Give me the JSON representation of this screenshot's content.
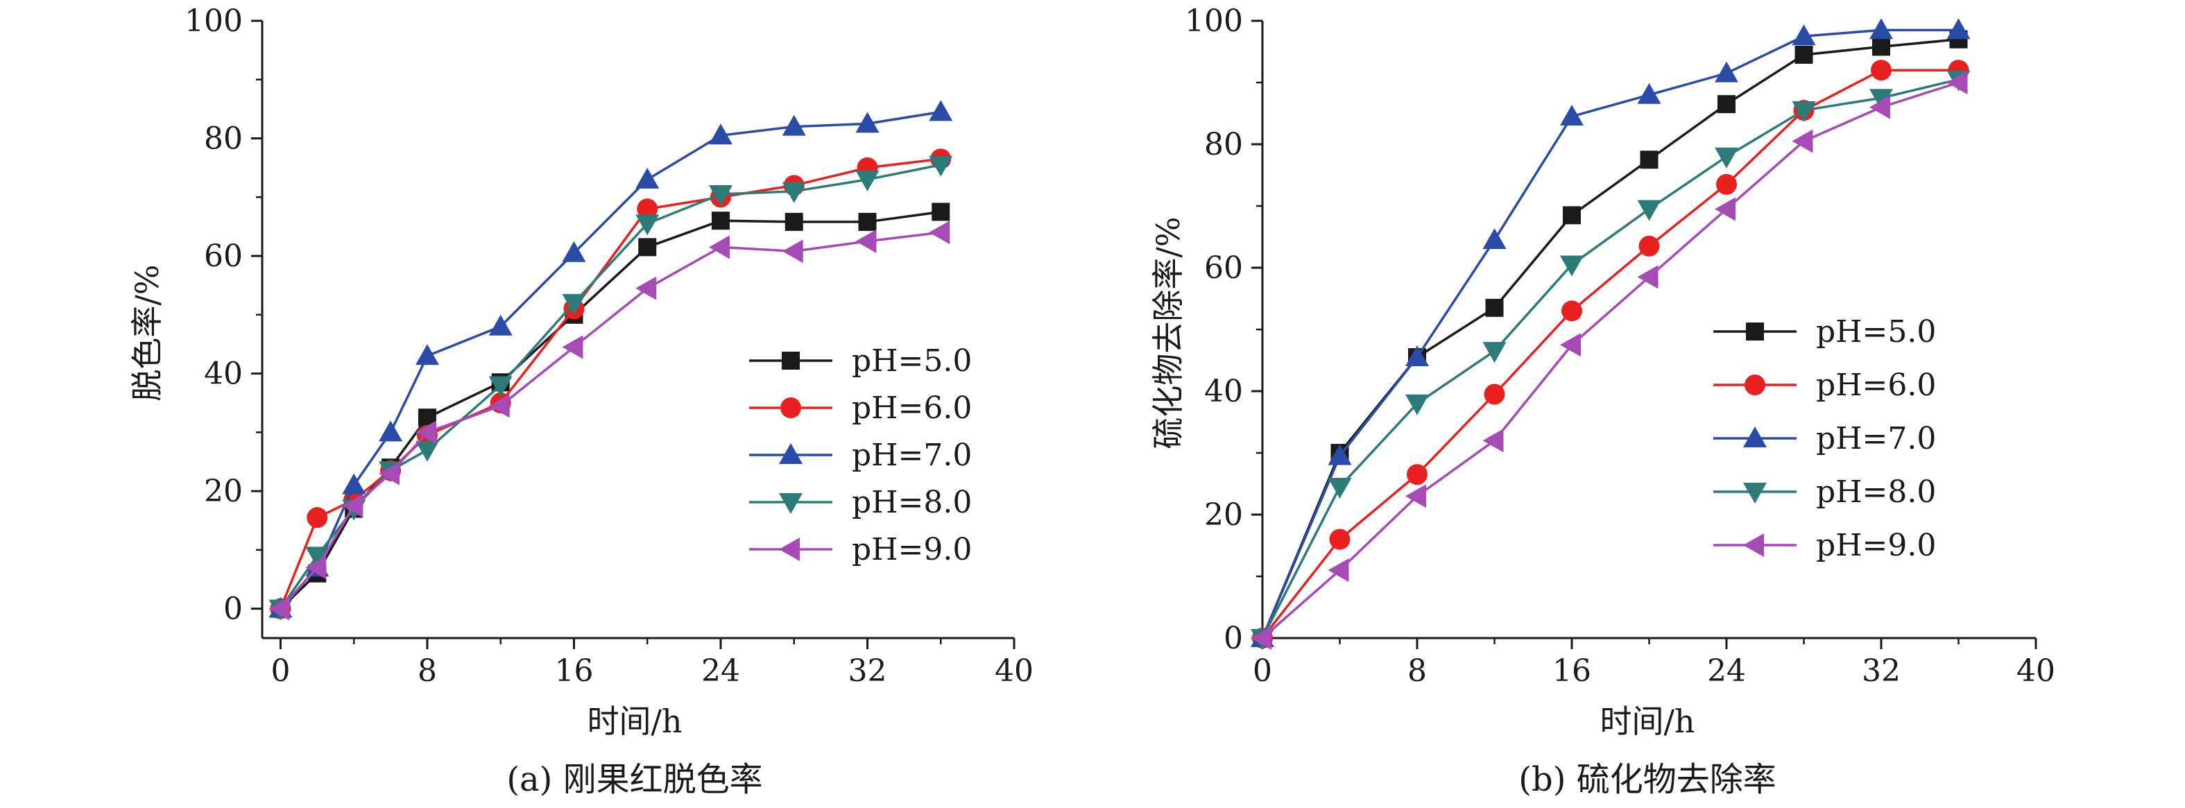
{
  "chart_data": [
    {
      "type": "line",
      "panel": "a",
      "caption": "(a) 刚果红脱色率",
      "xlabel": "时间/h",
      "ylabel": "脱色率/%",
      "xlim": [
        -1,
        40
      ],
      "ylim": [
        -5,
        100
      ],
      "xticks": [
        0,
        8,
        16,
        24,
        32,
        40
      ],
      "yticks": [
        0,
        20,
        40,
        60,
        80,
        100
      ],
      "grid": false,
      "legend_position": "center-right",
      "series": [
        {
          "name": "pH=5.0",
          "color": "#1a1a1a",
          "marker": "square",
          "x": [
            0,
            2,
            4,
            6,
            8,
            12,
            16,
            20,
            24,
            28,
            32,
            36
          ],
          "y": [
            0,
            6,
            17,
            24,
            32.5,
            38.5,
            50,
            61.5,
            66,
            65.8,
            65.8,
            67.5
          ]
        },
        {
          "name": "pH=6.0",
          "color": "#e8201f",
          "marker": "circle",
          "x": [
            0,
            2,
            4,
            6,
            8,
            12,
            16,
            20,
            24,
            28,
            32,
            36
          ],
          "y": [
            0,
            15.5,
            18.5,
            23.5,
            29.5,
            35,
            51,
            68,
            70,
            72,
            75,
            76.5
          ]
        },
        {
          "name": "pH=7.0",
          "color": "#2a4ca6",
          "marker": "triangle-up",
          "x": [
            0,
            2,
            4,
            6,
            8,
            12,
            16,
            20,
            24,
            28,
            32,
            36
          ],
          "y": [
            0,
            7,
            21,
            30,
            43,
            48,
            60.5,
            73,
            80.5,
            82,
            82.5,
            84.5
          ]
        },
        {
          "name": "pH=8.0",
          "color": "#2d7b78",
          "marker": "triangle-down",
          "x": [
            0,
            2,
            4,
            6,
            8,
            12,
            16,
            20,
            24,
            28,
            32,
            36
          ],
          "y": [
            0,
            9,
            17,
            23.5,
            27,
            38,
            52,
            65.5,
            70.5,
            71,
            73,
            75.5
          ]
        },
        {
          "name": "pH=9.0",
          "color": "#a64ab5",
          "marker": "triangle-left",
          "x": [
            0,
            2,
            4,
            6,
            8,
            12,
            16,
            20,
            24,
            28,
            32,
            36
          ],
          "y": [
            0,
            7,
            17.5,
            23,
            30,
            34.5,
            44.5,
            54.5,
            61.5,
            60.8,
            62.5,
            64
          ]
        }
      ]
    },
    {
      "type": "line",
      "panel": "b",
      "caption": "(b) 硫化物去除率",
      "xlabel": "时间/h",
      "ylabel": "硫化物去除率/%",
      "xlim": [
        0,
        40
      ],
      "ylim": [
        0,
        100
      ],
      "xticks": [
        0,
        8,
        16,
        24,
        32,
        40
      ],
      "yticks": [
        0,
        20,
        40,
        60,
        80,
        100
      ],
      "grid": false,
      "legend_position": "center-right",
      "series": [
        {
          "name": "pH=5.0",
          "color": "#1a1a1a",
          "marker": "square",
          "x": [
            0,
            4,
            8,
            12,
            16,
            20,
            24,
            28,
            32,
            36
          ],
          "y": [
            0,
            30,
            45.5,
            53.5,
            68.5,
            77.5,
            86.5,
            94.5,
            95.8,
            97
          ]
        },
        {
          "name": "pH=6.0",
          "color": "#e8201f",
          "marker": "circle",
          "x": [
            0,
            4,
            8,
            12,
            16,
            20,
            24,
            28,
            32,
            36
          ],
          "y": [
            0,
            16,
            26.5,
            39.5,
            53,
            63.5,
            73.5,
            85.5,
            92,
            92
          ]
        },
        {
          "name": "pH=7.0",
          "color": "#2a4ca6",
          "marker": "triangle-up",
          "x": [
            0,
            4,
            8,
            12,
            16,
            20,
            24,
            28,
            32,
            36
          ],
          "y": [
            0,
            29.5,
            45.5,
            64.5,
            84.5,
            88,
            91.5,
            97.5,
            98.5,
            98.5
          ]
        },
        {
          "name": "pH=8.0",
          "color": "#2d7b78",
          "marker": "triangle-down",
          "x": [
            0,
            4,
            8,
            12,
            16,
            20,
            24,
            28,
            32,
            36
          ],
          "y": [
            0,
            24.5,
            38,
            46.5,
            60.5,
            69.5,
            78,
            85.5,
            87.5,
            90.5
          ]
        },
        {
          "name": "pH=9.0",
          "color": "#a64ab5",
          "marker": "triangle-left",
          "x": [
            0,
            4,
            8,
            12,
            16,
            20,
            24,
            28,
            32,
            36
          ],
          "y": [
            0,
            11,
            23,
            32,
            47.5,
            58.5,
            69.5,
            80.5,
            86,
            90
          ]
        }
      ]
    }
  ]
}
